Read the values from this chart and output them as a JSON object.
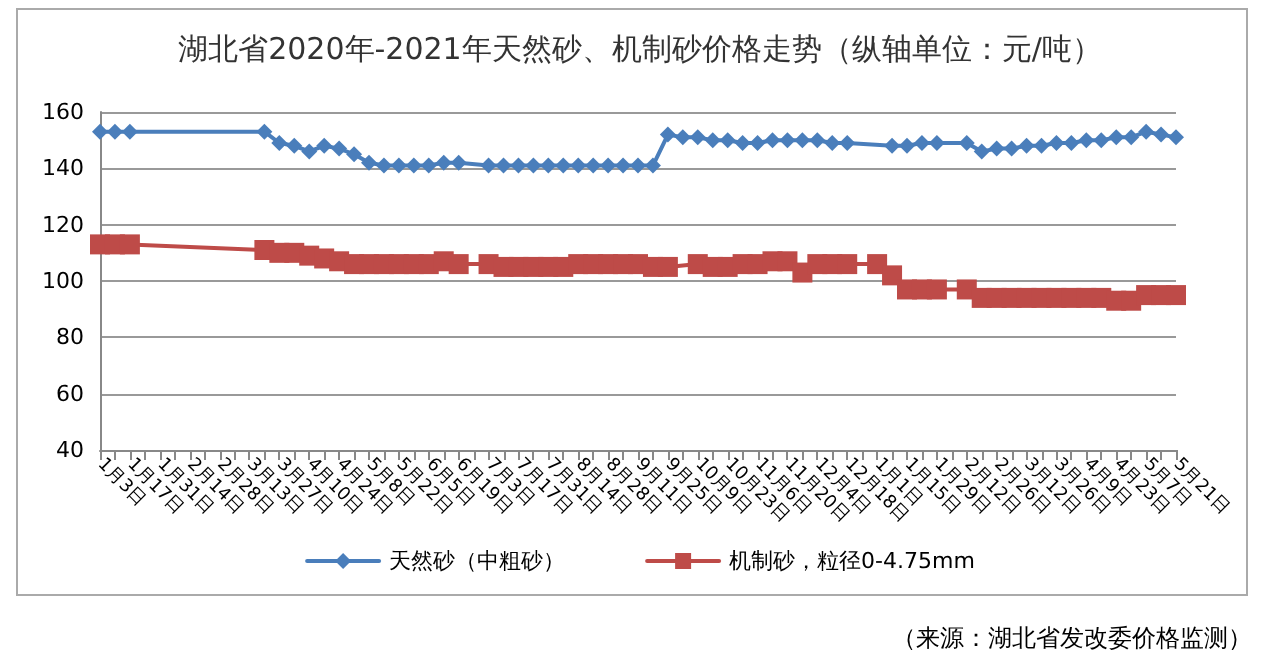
{
  "chart_data": {
    "type": "line",
    "title": "湖北省2020年-2021年天然砂、机制砂价格走势（纵轴单位：元/吨）",
    "categories": [
      "1月3日",
      null,
      "1月17日",
      null,
      "1月31日",
      null,
      "2月14日",
      null,
      "2月28日",
      null,
      "3月13日",
      null,
      "3月27日",
      null,
      "4月10日",
      null,
      "4月24日",
      null,
      "5月8日",
      null,
      "5月22日",
      null,
      "6月5日",
      null,
      "6月19日",
      null,
      "7月3日",
      null,
      "7月17日",
      null,
      "7月31日",
      null,
      "8月14日",
      null,
      "8月28日",
      null,
      "9月11日",
      null,
      "9月25日",
      null,
      "10月9日",
      null,
      "10月23日",
      null,
      "11月6日",
      null,
      "11月20日",
      null,
      "12月4日",
      null,
      "12月18日",
      null,
      "1月1日",
      null,
      "1月15日",
      null,
      "1月29日",
      null,
      "2月12日",
      null,
      "2月26日",
      null,
      "3月12日",
      null,
      "3月26日",
      null,
      "4月9日",
      null,
      "4月23日",
      null,
      "5月7日",
      null,
      "5月21日"
    ],
    "series": [
      {
        "name": "天然砂（中粗砂）",
        "color": "#4a7ebb",
        "marker": "diamond",
        "values": [
          153,
          153,
          153,
          null,
          null,
          null,
          null,
          null,
          null,
          null,
          null,
          153,
          149,
          148,
          146,
          148,
          147,
          145,
          142,
          141,
          141,
          141,
          141,
          142,
          142,
          null,
          141,
          141,
          141,
          141,
          141,
          141,
          141,
          141,
          141,
          141,
          141,
          141,
          152,
          151,
          151,
          150,
          150,
          149,
          149,
          150,
          150,
          150,
          150,
          149,
          149,
          null,
          null,
          148,
          148,
          149,
          149,
          null,
          149,
          146,
          147,
          147,
          148,
          148,
          149,
          149,
          150,
          150,
          151,
          151,
          153,
          152,
          151
        ]
      },
      {
        "name": "机制砂，粒径0-4.75mm",
        "color": "#be4b48",
        "marker": "square",
        "values": [
          113,
          113,
          113,
          null,
          null,
          null,
          null,
          null,
          null,
          null,
          null,
          111,
          110,
          110,
          109,
          108,
          107,
          106,
          106,
          106,
          106,
          106,
          106,
          107,
          106,
          null,
          106,
          105,
          105,
          105,
          105,
          105,
          106,
          106,
          106,
          106,
          106,
          105,
          105,
          null,
          106,
          105,
          105,
          106,
          106,
          107,
          107,
          103,
          106,
          106,
          106,
          null,
          106,
          102,
          97,
          97,
          97,
          null,
          97,
          94,
          94,
          94,
          94,
          94,
          94,
          94,
          94,
          94,
          93,
          93,
          95,
          95,
          95
        ]
      }
    ],
    "ylim": [
      40,
      160
    ],
    "yticks": [
      40,
      60,
      80,
      100,
      120,
      140,
      160
    ],
    "grid": "y",
    "legend": "bottom",
    "annotations": [
      "（来源：湖北省发改委价格监测）"
    ]
  }
}
